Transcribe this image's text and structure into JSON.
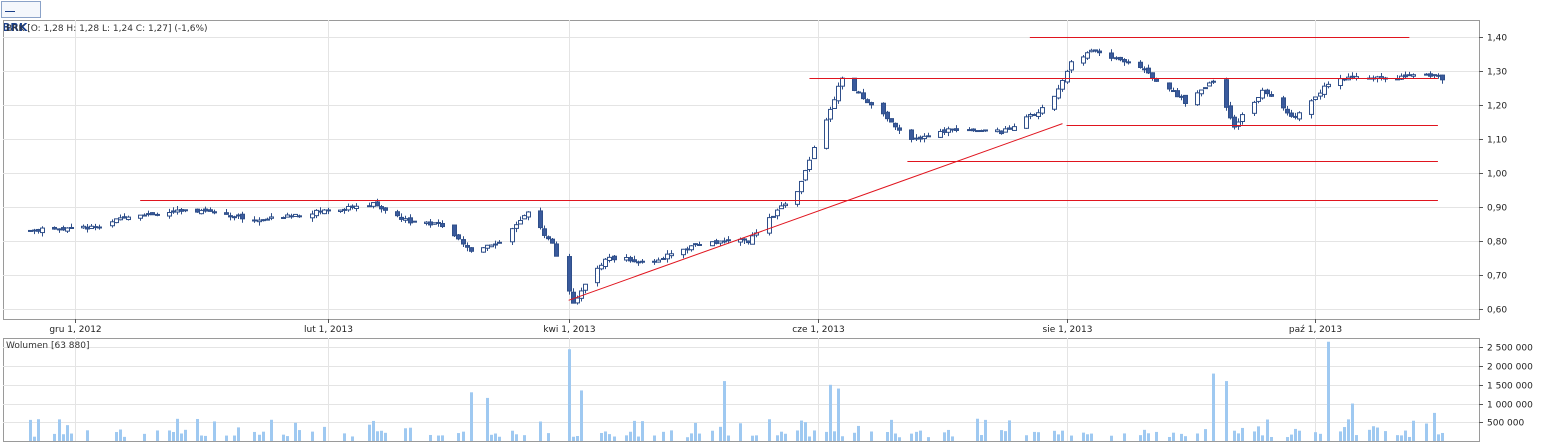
{
  "tab": {
    "label": "BRK"
  },
  "price_header": "BRK [O: 1,28  H: 1,28  L: 1,24  C: 1,27] (-1,6%)",
  "volume_header": "Wolumen [63 880]",
  "colors": {
    "up_fill": "#ffffff",
    "down_fill": "#3a5a9c",
    "candle_stroke": "#2f4f8a",
    "line": "#e0141e",
    "volume": "#9fc9f1",
    "grid": "#e4e4e4",
    "frame": "#9a9a9a"
  },
  "chart_data": [
    {
      "type": "candlestick",
      "title": "BRK [O: 1,28  H: 1,28  L: 1,24  C: 1,27] (-1,6%)",
      "x_labels": [
        "gru 1, 2012",
        "lut 1, 2013",
        "kwi 1, 2013",
        "cze 1, 2013",
        "sie 1, 2013",
        "paź 1, 2013"
      ],
      "x_label_dates": [
        "2012-12-01",
        "2013-02-01",
        "2013-04-01",
        "2013-06-01",
        "2013-08-01",
        "2013-10-01"
      ],
      "y_ticks": [
        "0,60",
        "0,70",
        "0,80",
        "0,90",
        "1,00",
        "1,10",
        "1,20",
        "1,30",
        "1,40"
      ],
      "y_tick_values": [
        0.6,
        0.7,
        0.8,
        0.9,
        1.0,
        1.1,
        1.2,
        1.3,
        1.4
      ],
      "ylim": [
        0.57,
        1.45
      ],
      "date_range": [
        "2012-11-20",
        "2013-11-01"
      ],
      "grid": true,
      "key_prices": [
        {
          "date": "2012-11-20",
          "close": 0.83
        },
        {
          "date": "2012-12-05",
          "close": 0.84
        },
        {
          "date": "2012-12-17",
          "close": 0.88
        },
        {
          "date": "2013-01-02",
          "close": 0.89
        },
        {
          "date": "2013-01-15",
          "close": 0.86
        },
        {
          "date": "2013-02-01",
          "close": 0.89
        },
        {
          "date": "2013-02-12",
          "close": 0.91
        },
        {
          "date": "2013-02-20",
          "close": 0.86
        },
        {
          "date": "2013-02-28",
          "close": 0.85
        },
        {
          "date": "2013-03-08",
          "close": 0.77
        },
        {
          "date": "2013-03-15",
          "close": 0.8
        },
        {
          "date": "2013-03-22",
          "close": 0.88
        },
        {
          "date": "2013-03-28",
          "close": 0.79
        },
        {
          "date": "2013-04-02",
          "close": 0.62
        },
        {
          "date": "2013-04-10",
          "close": 0.75
        },
        {
          "date": "2013-04-22",
          "close": 0.74
        },
        {
          "date": "2013-05-02",
          "close": 0.79
        },
        {
          "date": "2013-05-15",
          "close": 0.8
        },
        {
          "date": "2013-05-27",
          "close": 0.95
        },
        {
          "date": "2013-06-03",
          "close": 1.16
        },
        {
          "date": "2013-06-07",
          "close": 1.28
        },
        {
          "date": "2013-06-14",
          "close": 1.2
        },
        {
          "date": "2013-06-24",
          "close": 1.1
        },
        {
          "date": "2013-07-05",
          "close": 1.13
        },
        {
          "date": "2013-07-16",
          "close": 1.12
        },
        {
          "date": "2013-07-28",
          "close": 1.2
        },
        {
          "date": "2013-08-02",
          "close": 1.33
        },
        {
          "date": "2013-08-08",
          "close": 1.36
        },
        {
          "date": "2013-08-19",
          "close": 1.31
        },
        {
          "date": "2013-08-30",
          "close": 1.21
        },
        {
          "date": "2013-09-06",
          "close": 1.27
        },
        {
          "date": "2013-09-11",
          "close": 1.14
        },
        {
          "date": "2013-09-18",
          "close": 1.24
        },
        {
          "date": "2013-09-26",
          "close": 1.16
        },
        {
          "date": "2013-10-03",
          "close": 1.25
        },
        {
          "date": "2013-10-08",
          "close": 1.28
        },
        {
          "date": "2013-10-20",
          "close": 1.28
        },
        {
          "date": "2013-10-30",
          "close": 1.29
        },
        {
          "date": "2013-11-01",
          "close": 1.27
        }
      ],
      "annotations": {
        "horizontal_lines": [
          {
            "from": "2012-12-17",
            "to": "2013-10-31",
            "y": 0.92
          },
          {
            "from": "2013-06-23",
            "to": "2013-10-31",
            "y": 1.035
          },
          {
            "from": "2013-08-01",
            "to": "2013-10-31",
            "y": 1.14
          },
          {
            "from": "2013-05-30",
            "to": "2013-10-31",
            "y": 1.28
          },
          {
            "from": "2013-07-23",
            "to": "2013-10-24",
            "y": 1.4
          }
        ],
        "trend_line": {
          "from": {
            "date": "2013-04-01",
            "y": 0.625
          },
          "to": {
            "date": "2013-07-31",
            "y": 1.145
          }
        }
      }
    },
    {
      "type": "bar",
      "title": "Wolumen [63 880]",
      "y_ticks": [
        "500 000",
        "1 000 000",
        "1 500 000",
        "2 000 000",
        "2 500 000"
      ],
      "y_tick_values": [
        500000,
        1000000,
        1500000,
        2000000,
        2500000
      ],
      "ylim": [
        0,
        2750000
      ],
      "spikes": [
        {
          "date": "2013-03-08",
          "value": 1300000
        },
        {
          "date": "2013-03-12",
          "value": 1150000
        },
        {
          "date": "2013-04-01",
          "value": 2450000
        },
        {
          "date": "2013-04-04",
          "value": 1350000
        },
        {
          "date": "2013-05-09",
          "value": 1600000
        },
        {
          "date": "2013-06-04",
          "value": 1500000
        },
        {
          "date": "2013-06-06",
          "value": 1400000
        },
        {
          "date": "2013-08-03",
          "value": 1600000
        },
        {
          "date": "2013-09-06",
          "value": 1800000
        },
        {
          "date": "2013-09-09",
          "value": 1600000
        },
        {
          "date": "2013-10-04",
          "value": 2650000
        },
        {
          "date": "2013-10-06",
          "value": 1800000
        },
        {
          "date": "2013-10-10",
          "value": 1000000
        },
        {
          "date": "2013-10-27",
          "value": 1200000
        },
        {
          "date": "2013-10-30",
          "value": 750000
        }
      ]
    }
  ]
}
